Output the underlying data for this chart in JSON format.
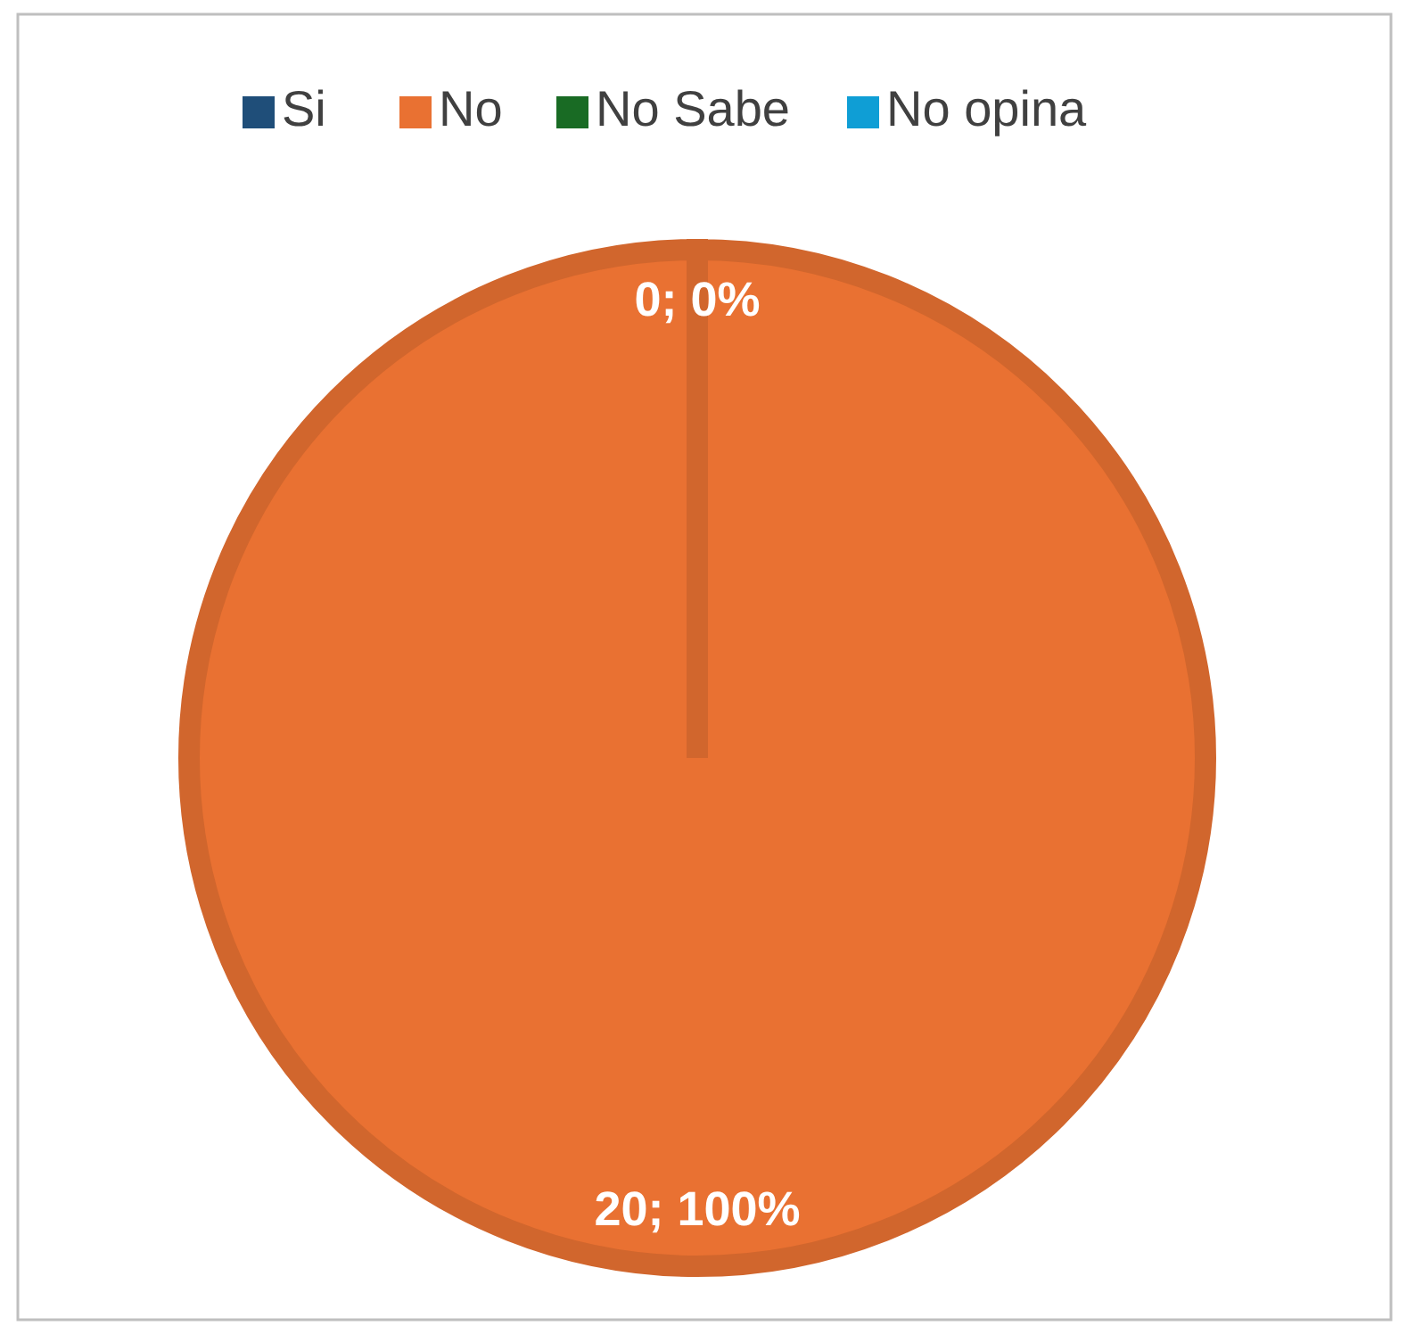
{
  "chart_data": {
    "type": "pie",
    "categories": [
      "Si",
      "No",
      "No Sabe",
      "No opina"
    ],
    "values": [
      0,
      20,
      0,
      0
    ],
    "colors": [
      "#1f4e79",
      "#e97132",
      "#196b24",
      "#0f9ed5"
    ],
    "value_labels": [
      "0; 0%",
      "20; 100%",
      null,
      null
    ],
    "legend": "top"
  }
}
